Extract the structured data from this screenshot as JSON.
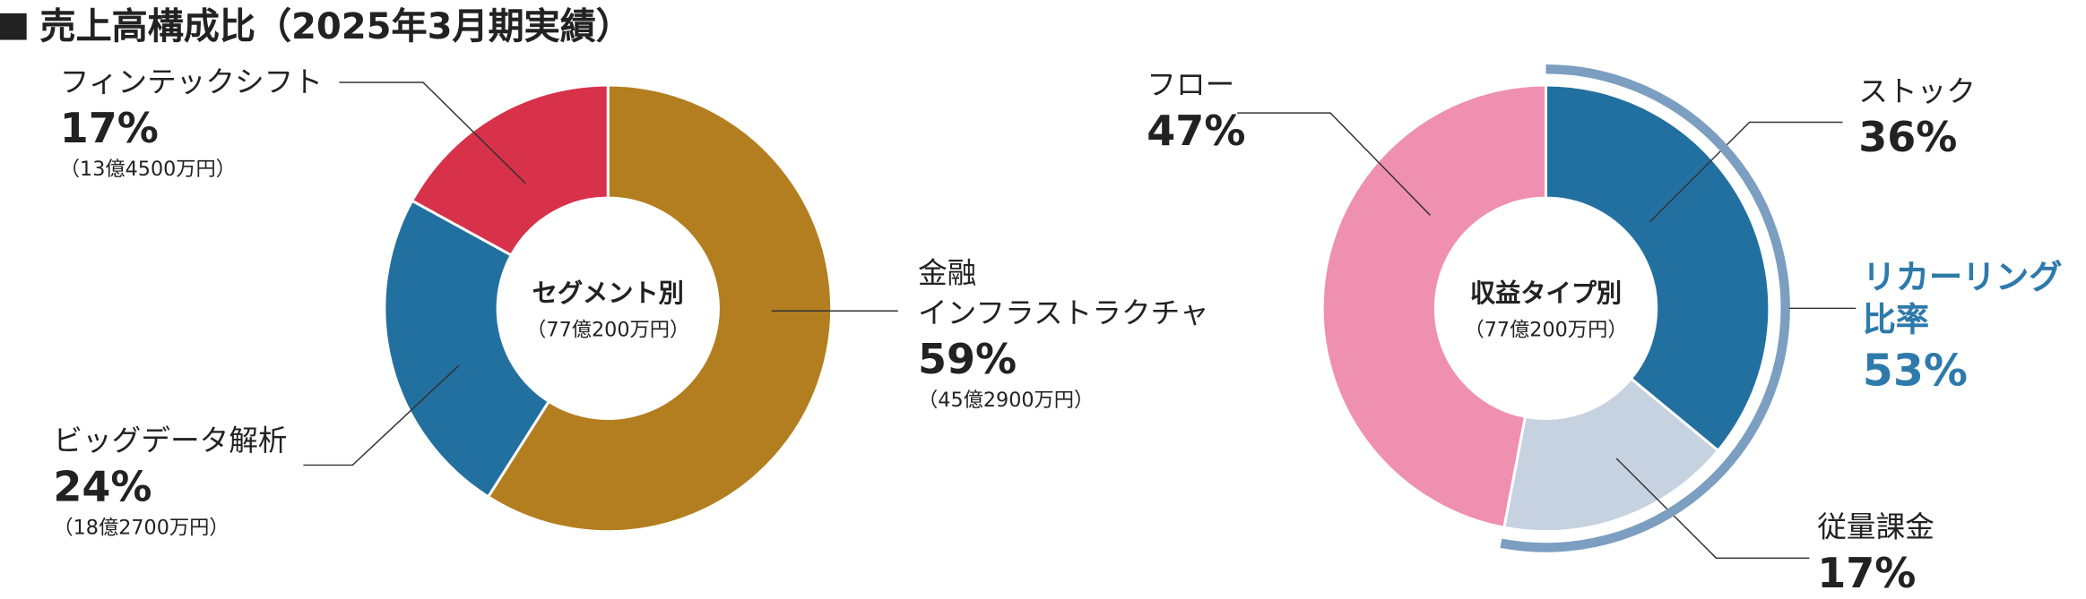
{
  "title": "売上高構成比（2025年3月期実績）",
  "chart_data": [
    {
      "type": "donut",
      "center_label": "セグメント別",
      "center_sublabel": "（77億200万円）",
      "categories": [
        "金融\nインフラストラクチャ",
        "ビッグデータ解析",
        "フィンテックシフト"
      ],
      "values": [
        59,
        24,
        17
      ],
      "value_labels": [
        "59%",
        "24%",
        "17%"
      ],
      "amount_labels": [
        "（45億2900万円）",
        "（18億2700万円）",
        "（13億4500万円）"
      ],
      "colors": [
        "#b37e1f",
        "#2270a0",
        "#d8314a"
      ]
    },
    {
      "type": "donut",
      "center_label": "収益タイプ別",
      "center_sublabel": "（77億200万円）",
      "categories": [
        "ストック",
        "従量課金",
        "フロー"
      ],
      "values": [
        36,
        17,
        47
      ],
      "value_labels": [
        "36%",
        "17%",
        "47%"
      ],
      "colors": [
        "#2270a0",
        "#c7d2e1",
        "#ef90b1"
      ],
      "annotation": {
        "label": "リカーリング\n比率",
        "value": 53,
        "value_label": "53%",
        "color": "#2e7aab",
        "arc_color": "#7b9ec1"
      }
    }
  ]
}
